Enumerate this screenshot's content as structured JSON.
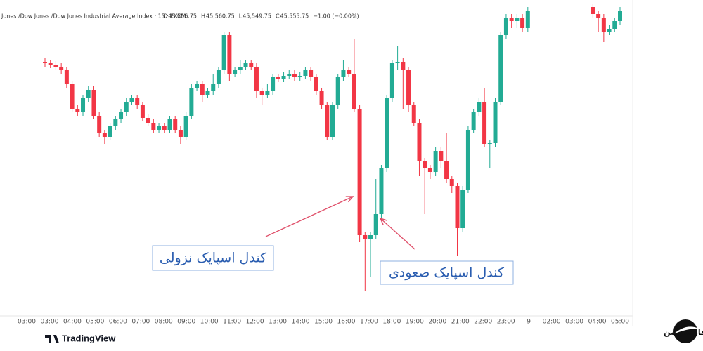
{
  "chart_data": {
    "type": "candlestick",
    "title": "Jones /Dow Jones /Dow Jones Industrial Average Index · 15 · FXCM",
    "ohlc_labels": [
      {
        "key": "O",
        "value": "45,556.75"
      },
      {
        "key": "H",
        "value": "45,560.75"
      },
      {
        "key": "L",
        "value": "45,549.75"
      },
      {
        "key": "C",
        "value": "45,555.75"
      }
    ],
    "change": "−1.00 (−0.00%)",
    "up_color": "#22ab94",
    "down_color": "#f23645",
    "ylim": [
      45140,
      45600
    ],
    "xtick_labels": [
      "03:00",
      "03:00",
      "04:00",
      "05:00",
      "06:00",
      "07:00",
      "08:00",
      "09:00",
      "10:00",
      "11:00",
      "12:00",
      "13:00",
      "14:00",
      "15:00",
      "16:00",
      "17:00",
      "18:00",
      "19:00",
      "20:00",
      "21:00",
      "22:00",
      "23:00",
      "9",
      "02:00",
      "03:00",
      "04:00",
      "05:00"
    ],
    "open": [
      45512,
      45510,
      45508,
      45505,
      45500,
      45480,
      45445,
      45440,
      45460,
      45472,
      45435,
      45410,
      45405,
      45420,
      45430,
      45440,
      45455,
      45460,
      45450,
      45432,
      45425,
      45415,
      45420,
      45415,
      45430,
      45415,
      45405,
      45435,
      45475,
      45480,
      45465,
      45470,
      45480,
      45500,
      45550,
      45495,
      45500,
      45505,
      45510,
      45505,
      45470,
      45465,
      45470,
      45490,
      45488,
      45492,
      45495,
      45490,
      45492,
      45500,
      45490,
      45470,
      45450,
      45405,
      45450,
      45490,
      45500,
      45495,
      45445,
      45265,
      45260,
      45265,
      45295,
      45360,
      45460,
      45510,
      45512,
      45500,
      45450,
      45425,
      45370,
      45360,
      45355,
      45385,
      45370,
      45345,
      45335,
      45275,
      45330,
      45415,
      45440,
      45455,
      45395,
      45397,
      45455,
      45550,
      45575,
      45570,
      45575,
      45560,
      null,
      null,
      null,
      null,
      null,
      null,
      null,
      null,
      null,
      null,
      null,
      45590,
      45580,
      45575,
      45555,
      45558,
      45570
    ],
    "high": [
      45517,
      45515,
      45513,
      45510,
      45505,
      45485,
      45450,
      45465,
      45477,
      45477,
      45440,
      45415,
      45425,
      45435,
      45445,
      45460,
      45465,
      45465,
      45455,
      45437,
      45430,
      45425,
      45425,
      45435,
      45435,
      45420,
      45440,
      45480,
      45485,
      45485,
      45475,
      45495,
      45505,
      45555,
      45555,
      45505,
      45515,
      45515,
      45515,
      45510,
      45475,
      45480,
      45495,
      45495,
      45497,
      45500,
      45500,
      45497,
      45505,
      45505,
      45495,
      45475,
      45455,
      45455,
      45495,
      45515,
      45505,
      45545,
      45450,
      45270,
      45270,
      45345,
      45365,
      45465,
      45515,
      45535,
      45517,
      45505,
      45455,
      45430,
      45375,
      45365,
      45390,
      45390,
      45410,
      45350,
      45340,
      45335,
      45420,
      45445,
      45460,
      45475,
      45400,
      45460,
      45555,
      45580,
      45580,
      45580,
      45580,
      45590,
      null,
      null,
      null,
      null,
      null,
      null,
      null,
      null,
      null,
      null,
      null,
      45595,
      45585,
      45580,
      45565,
      45575,
      45590
    ],
    "low": [
      45505,
      45503,
      45500,
      45495,
      45475,
      45440,
      45435,
      45435,
      45455,
      45430,
      45405,
      45395,
      45400,
      45415,
      45425,
      45435,
      45450,
      45445,
      45427,
      45420,
      45410,
      45410,
      45410,
      45410,
      45410,
      45395,
      45400,
      45430,
      45470,
      45455,
      45460,
      45465,
      45475,
      45495,
      45485,
      45490,
      45495,
      45500,
      45500,
      45460,
      45450,
      45460,
      45465,
      45483,
      45483,
      45487,
      45485,
      45485,
      45487,
      45485,
      45465,
      45445,
      45400,
      45400,
      45445,
      45485,
      45490,
      45440,
      45255,
      45185,
      45205,
      45260,
      45290,
      45355,
      45455,
      45500,
      45445,
      45440,
      45420,
      45350,
      45295,
      45345,
      45350,
      45360,
      45340,
      45325,
      45235,
      45270,
      45325,
      45410,
      45435,
      45390,
      45360,
      45390,
      45450,
      45545,
      45560,
      45560,
      45555,
      45555,
      null,
      null,
      null,
      null,
      null,
      null,
      null,
      null,
      null,
      null,
      null,
      45575,
      45555,
      45540,
      45550,
      45555,
      45565
    ],
    "close": [
      45510,
      45508,
      45505,
      45500,
      45480,
      45445,
      45440,
      45460,
      45472,
      45435,
      45410,
      45405,
      45420,
      45430,
      45440,
      45455,
      45460,
      45450,
      45432,
      45425,
      45415,
      45420,
      45415,
      45430,
      45415,
      45405,
      45435,
      45475,
      45480,
      45465,
      45470,
      45480,
      45500,
      45550,
      45495,
      45500,
      45505,
      45510,
      45505,
      45470,
      45465,
      45470,
      45490,
      45488,
      45492,
      45495,
      45490,
      45492,
      45500,
      45490,
      45470,
      45450,
      45405,
      45450,
      45490,
      45500,
      45495,
      45445,
      45265,
      45260,
      45265,
      45295,
      45360,
      45460,
      45510,
      45512,
      45500,
      45450,
      45425,
      45370,
      45360,
      45355,
      45385,
      45370,
      45345,
      45335,
      45275,
      45330,
      45415,
      45440,
      45455,
      45395,
      45397,
      45455,
      45550,
      45575,
      45570,
      45575,
      45560,
      45585,
      null,
      null,
      null,
      null,
      null,
      null,
      null,
      null,
      null,
      null,
      null,
      45580,
      45575,
      45555,
      45558,
      45570,
      45585
    ],
    "annotations": [
      "کندل اسپایک نزولی",
      "کندل اسپایک صعودی"
    ]
  },
  "footer": {
    "platform": "TradingView",
    "brand": "خانه فارکس من"
  }
}
